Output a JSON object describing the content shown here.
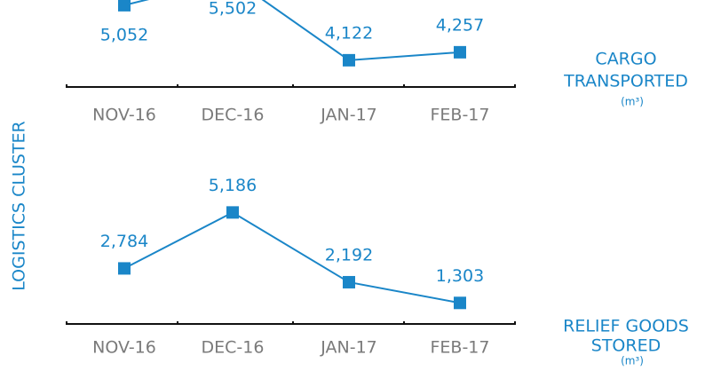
{
  "side_label": "LOGISTICS CLUSTER",
  "chart_data": [
    {
      "type": "line",
      "title_lines": [
        "CARGO",
        "TRANSPORTED"
      ],
      "unit": "(m³)",
      "categories": [
        "NOV-16",
        "DEC-16",
        "JAN-17",
        "FEB-17"
      ],
      "series": [
        {
          "name": "CARGO TRANSPORTED",
          "color": "#1a86c8",
          "values": [
            5052,
            5502,
            4122,
            4257
          ],
          "value_labels": [
            "5,052",
            "5,502",
            "4,122",
            "4,257"
          ]
        }
      ],
      "ylim": [
        3670,
        5170
      ]
    },
    {
      "type": "line",
      "title_lines": [
        "RELIEF GOODS",
        "STORED"
      ],
      "unit": "(m³)",
      "categories": [
        "NOV-16",
        "DEC-16",
        "JAN-17",
        "FEB-17"
      ],
      "series": [
        {
          "name": "RELIEF GOODS STORED",
          "color": "#1a86c8",
          "values": [
            2784,
            5186,
            2192,
            1303
          ],
          "value_labels": [
            "2,784",
            "5,186",
            "2,192",
            "1,303"
          ]
        }
      ],
      "ylim": [
        400,
        5200
      ]
    }
  ]
}
